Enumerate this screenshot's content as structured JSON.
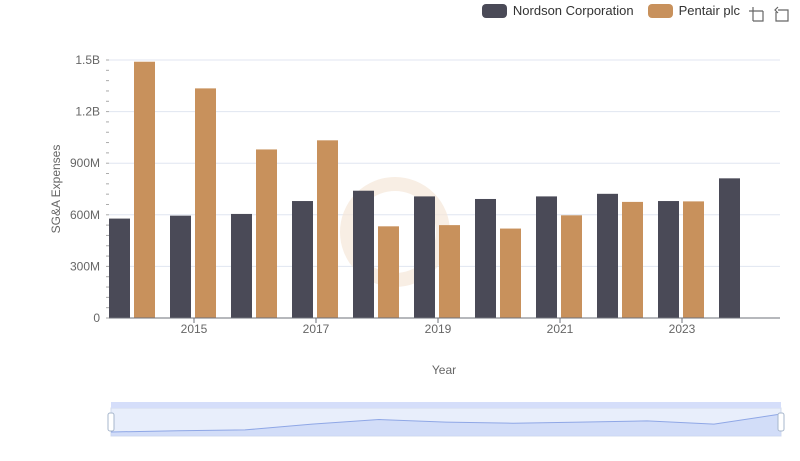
{
  "legend": [
    {
      "name": "Nordson Corporation",
      "color": "#4a4a57"
    },
    {
      "name": "Pentair plc",
      "color": "#c8915c"
    }
  ],
  "toolbox": {
    "zoom_icon": "zoom-icon",
    "restore_icon": "restore-icon"
  },
  "chart_data": {
    "type": "bar",
    "title": "",
    "xlabel": "Year",
    "ylabel": "SG&A Expenses",
    "categories": [
      "2014",
      "2015",
      "2016",
      "2017",
      "2018",
      "2019",
      "2020",
      "2021",
      "2022",
      "2023",
      "2024"
    ],
    "x_tick_labels": [
      "2015",
      "2017",
      "2019",
      "2021",
      "2023"
    ],
    "y_tick_labels": [
      "0",
      "300M",
      "600M",
      "900M",
      "1.2B",
      "1.5B"
    ],
    "ylim": [
      0,
      1500000000
    ],
    "grid": true,
    "legend_position": "top-right",
    "series": [
      {
        "name": "Nordson Corporation",
        "color": "#4a4a57",
        "values": [
          578000000,
          595000000,
          605000000,
          680000000,
          740000000,
          707000000,
          692000000,
          707000000,
          722000000,
          680000000,
          812000000
        ]
      },
      {
        "name": "Pentair plc",
        "color": "#c8915c",
        "values": [
          1490000000,
          1335000000,
          980000000,
          1033000000,
          533000000,
          540000000,
          520000000,
          597000000,
          675000000,
          678000000,
          null
        ]
      }
    ]
  },
  "data_zoom": {
    "start_percent": 0,
    "end_percent": 100
  }
}
